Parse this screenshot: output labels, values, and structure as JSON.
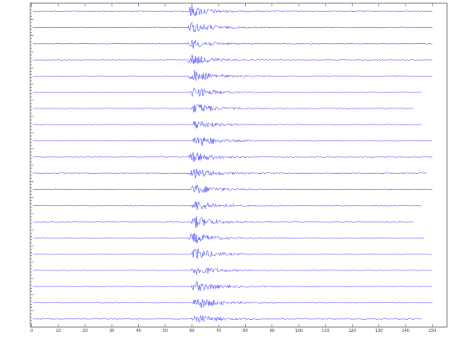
{
  "chart_data": {
    "type": "seismogram",
    "xlim": [
      -0.5,
      155.5
    ],
    "xticks": [
      0,
      10,
      20,
      30,
      40,
      50,
      60,
      70,
      80,
      90,
      100,
      110,
      120,
      130,
      140,
      150
    ],
    "color": "#1a1aff",
    "grid": false,
    "traces": [
      {
        "onset": 58.5,
        "amplitude": 9,
        "end": 150
      },
      {
        "onset": 58.5,
        "amplitude": 8,
        "end": 150
      },
      {
        "onset": 58.7,
        "amplitude": 7,
        "end": 150
      },
      {
        "onset": 58.5,
        "amplitude": 8,
        "end": 150
      },
      {
        "onset": 59.0,
        "amplitude": 9,
        "end": 150
      },
      {
        "onset": 59.5,
        "amplitude": 8,
        "end": 146
      },
      {
        "onset": 60.0,
        "amplitude": 8,
        "end": 143
      },
      {
        "onset": 60.0,
        "amplitude": 7,
        "end": 146
      },
      {
        "onset": 60.5,
        "amplitude": 9,
        "end": 150
      },
      {
        "onset": 59.0,
        "amplitude": 8,
        "end": 150
      },
      {
        "onset": 59.5,
        "amplitude": 8,
        "end": 148
      },
      {
        "onset": 59.5,
        "amplitude": 8,
        "end": 150
      },
      {
        "onset": 60.0,
        "amplitude": 8,
        "end": 146
      },
      {
        "onset": 60.0,
        "amplitude": 9,
        "end": 143
      },
      {
        "onset": 59.0,
        "amplitude": 8,
        "end": 147
      },
      {
        "onset": 60.0,
        "amplitude": 9,
        "end": 150
      },
      {
        "onset": 60.0,
        "amplitude": 8,
        "end": 150
      },
      {
        "onset": 60.0,
        "amplitude": 8,
        "end": 150
      },
      {
        "onset": 60.5,
        "amplitude": 9,
        "end": 150
      },
      {
        "onset": 60.0,
        "amplitude": 7,
        "end": 146
      }
    ]
  }
}
